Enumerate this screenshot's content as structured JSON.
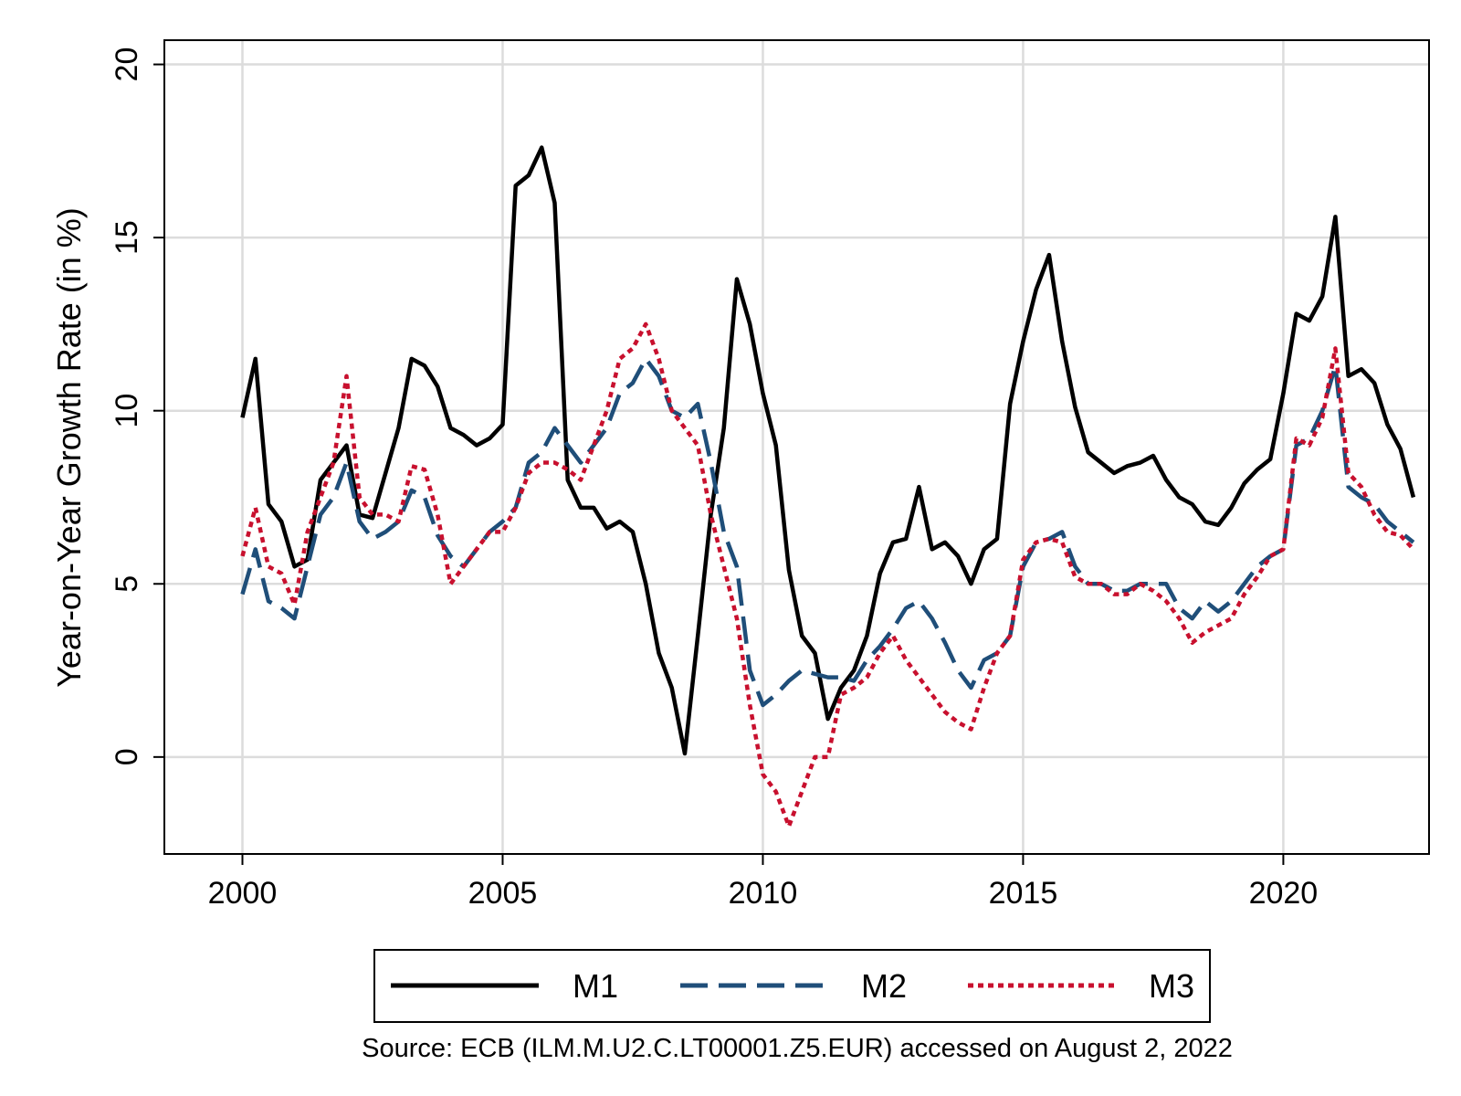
{
  "chart_data": {
    "type": "line",
    "title": "",
    "xlabel": "",
    "ylabel": "Year-on-Year Growth Rate (in %)",
    "xlim": [
      1998.5,
      2022.8
    ],
    "ylim": [
      -2.8,
      20.7
    ],
    "xticks": [
      2000,
      2005,
      2010,
      2015,
      2020
    ],
    "yticks": [
      0,
      5,
      10,
      15,
      20
    ],
    "xtick_labels": [
      "2000",
      "2005",
      "2010",
      "2015",
      "2020"
    ],
    "ytick_labels": [
      "0",
      "5",
      "10",
      "15",
      "20"
    ],
    "grid": true,
    "legend_position": "bottom",
    "source_note": "Source: ECB (ILM.M.U2.C.LT00001.Z5.EUR) accessed on August 2, 2022",
    "x": [
      2000.0,
      2000.25,
      2000.5,
      2000.75,
      2001.0,
      2001.25,
      2001.5,
      2001.75,
      2002.0,
      2002.25,
      2002.5,
      2002.75,
      2003.0,
      2003.25,
      2003.5,
      2003.75,
      2004.0,
      2004.25,
      2004.5,
      2004.75,
      2005.0,
      2005.25,
      2005.5,
      2005.75,
      2006.0,
      2006.25,
      2006.5,
      2006.75,
      2007.0,
      2007.25,
      2007.5,
      2007.75,
      2008.0,
      2008.25,
      2008.5,
      2008.75,
      2009.0,
      2009.25,
      2009.5,
      2009.75,
      2010.0,
      2010.25,
      2010.5,
      2010.75,
      2011.0,
      2011.25,
      2011.5,
      2011.75,
      2012.0,
      2012.25,
      2012.5,
      2012.75,
      2013.0,
      2013.25,
      2013.5,
      2013.75,
      2014.0,
      2014.25,
      2014.5,
      2014.75,
      2015.0,
      2015.25,
      2015.5,
      2015.75,
      2016.0,
      2016.25,
      2016.5,
      2016.75,
      2017.0,
      2017.25,
      2017.5,
      2017.75,
      2018.0,
      2018.25,
      2018.5,
      2018.75,
      2019.0,
      2019.25,
      2019.5,
      2019.75,
      2020.0,
      2020.25,
      2020.5,
      2020.75,
      2021.0,
      2021.25,
      2021.5,
      2021.75,
      2022.0,
      2022.25,
      2022.5
    ],
    "series": [
      {
        "name": "M1",
        "color": "#000000",
        "dash": "solid",
        "values": [
          9.8,
          11.5,
          7.3,
          6.8,
          5.5,
          5.7,
          8.0,
          8.5,
          9.0,
          7.0,
          6.9,
          8.2,
          9.5,
          11.5,
          11.3,
          10.7,
          9.5,
          9.3,
          9.0,
          9.2,
          9.6,
          16.5,
          16.8,
          17.6,
          16.0,
          8.0,
          7.2,
          7.2,
          6.6,
          6.8,
          6.5,
          5.0,
          3.0,
          2.0,
          0.1,
          3.5,
          7.0,
          9.5,
          13.8,
          12.5,
          10.5,
          9.0,
          5.4,
          3.5,
          3.0,
          1.1,
          2.0,
          2.5,
          3.5,
          5.3,
          6.2,
          6.3,
          7.8,
          6.0,
          6.2,
          5.8,
          5.0,
          6.0,
          6.3,
          10.2,
          12.0,
          13.5,
          14.5,
          12.0,
          10.1,
          8.8,
          8.5,
          8.2,
          8.4,
          8.5,
          8.7,
          8.0,
          7.5,
          7.3,
          6.8,
          6.7,
          7.2,
          7.9,
          8.3,
          8.6,
          10.5,
          12.8,
          12.6,
          13.3,
          15.6,
          11.0,
          11.2,
          10.8,
          9.6,
          8.9,
          7.5
        ]
      },
      {
        "name": "M2",
        "color": "#1f4e79",
        "dash": "long",
        "values": [
          4.7,
          6.0,
          4.5,
          4.3,
          4.0,
          5.5,
          7.0,
          7.5,
          8.5,
          6.8,
          6.3,
          6.5,
          6.8,
          7.7,
          7.5,
          6.4,
          5.8,
          5.5,
          6.0,
          6.5,
          6.8,
          7.2,
          8.5,
          8.8,
          9.5,
          9.0,
          8.5,
          9.0,
          9.5,
          10.5,
          10.8,
          11.5,
          11.0,
          10.0,
          9.8,
          10.2,
          8.5,
          6.5,
          5.5,
          2.5,
          1.5,
          1.8,
          2.2,
          2.5,
          2.4,
          2.3,
          2.3,
          2.2,
          2.8,
          3.2,
          3.7,
          4.3,
          4.5,
          4.0,
          3.3,
          2.5,
          2.0,
          2.8,
          3.0,
          3.5,
          5.5,
          6.2,
          6.3,
          6.5,
          5.5,
          5.0,
          5.0,
          4.8,
          4.8,
          5.0,
          5.0,
          5.0,
          4.3,
          4.0,
          4.5,
          4.2,
          4.5,
          5.0,
          5.5,
          5.8,
          6.0,
          9.0,
          9.2,
          10.0,
          11.3,
          7.8,
          7.5,
          7.3,
          6.8,
          6.5,
          6.2
        ]
      },
      {
        "name": "M3",
        "color": "#c8102e",
        "dash": "dotted",
        "values": [
          5.8,
          7.2,
          5.5,
          5.3,
          4.4,
          6.5,
          7.5,
          8.5,
          11.0,
          7.5,
          7.0,
          7.0,
          6.8,
          8.4,
          8.3,
          7.0,
          5.0,
          5.5,
          6.0,
          6.5,
          6.5,
          7.2,
          8.2,
          8.5,
          8.5,
          8.3,
          8.0,
          9.0,
          10.0,
          11.5,
          11.8,
          12.5,
          11.5,
          10.0,
          9.5,
          9.0,
          7.0,
          5.5,
          4.0,
          1.5,
          -0.5,
          -1.0,
          -2.0,
          -1.0,
          0.0,
          0.0,
          1.8,
          2.0,
          2.3,
          3.0,
          3.5,
          2.8,
          2.3,
          1.8,
          1.3,
          1.0,
          0.8,
          2.0,
          3.0,
          3.5,
          5.7,
          6.2,
          6.3,
          6.2,
          5.2,
          5.0,
          5.0,
          4.7,
          4.7,
          5.0,
          4.8,
          4.5,
          4.0,
          3.3,
          3.6,
          3.8,
          4.0,
          4.7,
          5.2,
          5.8,
          6.0,
          9.2,
          9.0,
          9.8,
          11.8,
          8.2,
          7.8,
          7.0,
          6.5,
          6.4,
          6.0
        ]
      }
    ]
  }
}
